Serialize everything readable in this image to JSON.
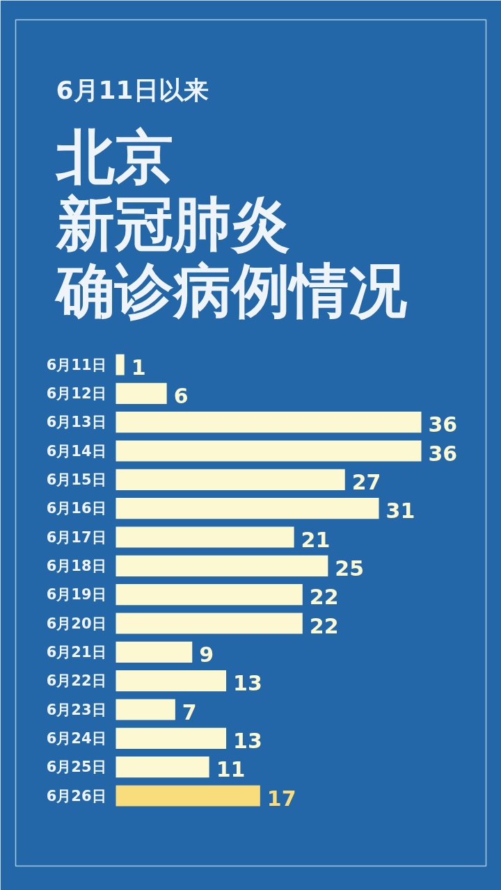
{
  "chart_data": {
    "type": "bar",
    "orientation": "horizontal",
    "subtitle": "6月11日以来",
    "title": "北京新冠肺炎确诊病例情况",
    "categories": [
      "6月11日",
      "6月12日",
      "6月13日",
      "6月14日",
      "6月15日",
      "6月16日",
      "6月17日",
      "6月18日",
      "6月19日",
      "6月20日",
      "6月21日",
      "6月22日",
      "6月23日",
      "6月24日",
      "6月25日",
      "6月26日"
    ],
    "values": [
      1,
      6,
      36,
      36,
      27,
      31,
      21,
      25,
      22,
      22,
      9,
      13,
      7,
      13,
      11,
      17
    ],
    "colors": [
      "#fbf8d2",
      "#fbf8d2",
      "#fbf8d2",
      "#fbf8d2",
      "#fbf8d2",
      "#fbf8d2",
      "#fbf8d2",
      "#fbf8d2",
      "#fbf8d2",
      "#fbf8d2",
      "#fbf8d2",
      "#fbf8d2",
      "#fbf8d2",
      "#fbf8d2",
      "#fbf8d2",
      "#f9dc7c"
    ],
    "data_labels": true
  }
}
